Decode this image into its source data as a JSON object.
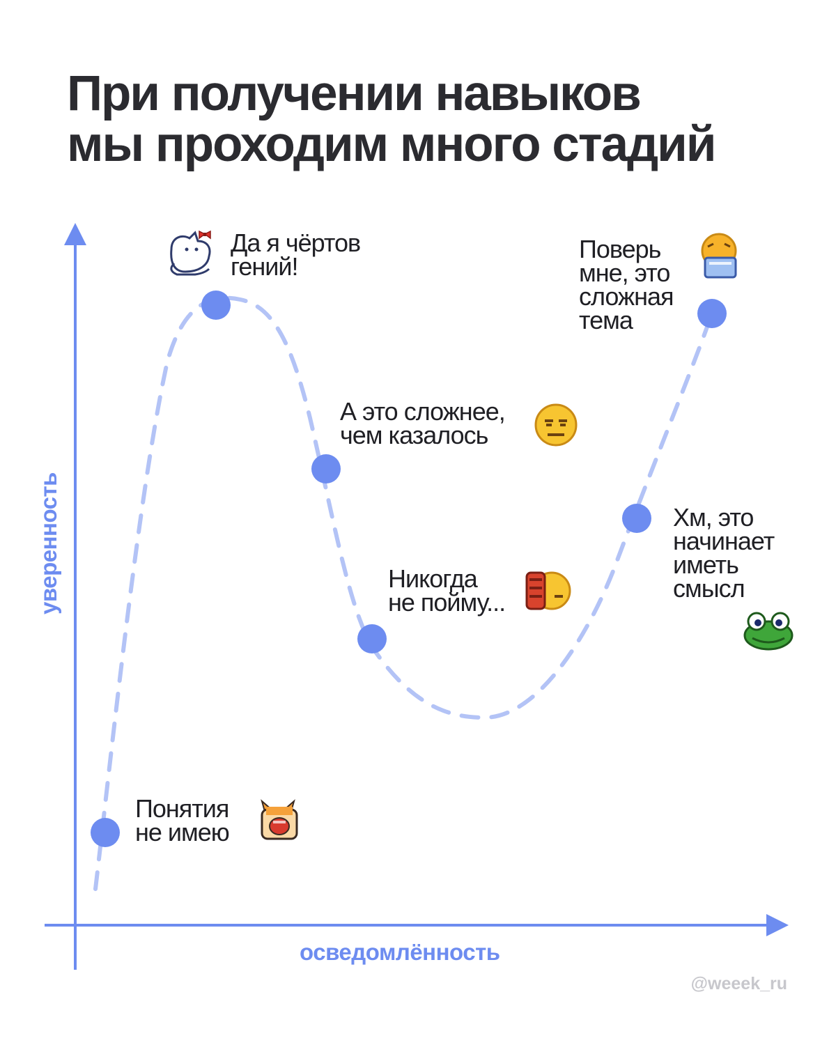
{
  "title": {
    "line1": "При получении навыков",
    "line2": "мы проходим много стадий"
  },
  "axes": {
    "x_label": "осведомлённость",
    "y_label": "уверенность",
    "color": "#6d8cf0"
  },
  "curve": {
    "color": "#b3c3f6",
    "style": "dashed"
  },
  "points_color": "#6d8cf0",
  "stages": [
    {
      "lines": [
        "Понятия",
        "не имею"
      ],
      "icon": "screaming-cat-icon"
    },
    {
      "lines": [
        "Да я чёртов",
        "гений!"
      ],
      "icon": "white-cat-with-bow-icon"
    },
    {
      "lines": [
        "А это сложнее,",
        "чем казалось"
      ],
      "icon": "neutral-face-icon"
    },
    {
      "lines": [
        "Никогда",
        "не пойму..."
      ],
      "icon": "facepalm-face-icon"
    },
    {
      "lines": [
        "Хм, это",
        "начинает",
        "иметь",
        "смысл"
      ],
      "icon": "frog-icon"
    },
    {
      "lines": [
        "Поверь",
        "мне, это",
        "сложная",
        "тема"
      ],
      "icon": "face-with-laptop-icon"
    }
  ],
  "handle": "@weeek_ru"
}
